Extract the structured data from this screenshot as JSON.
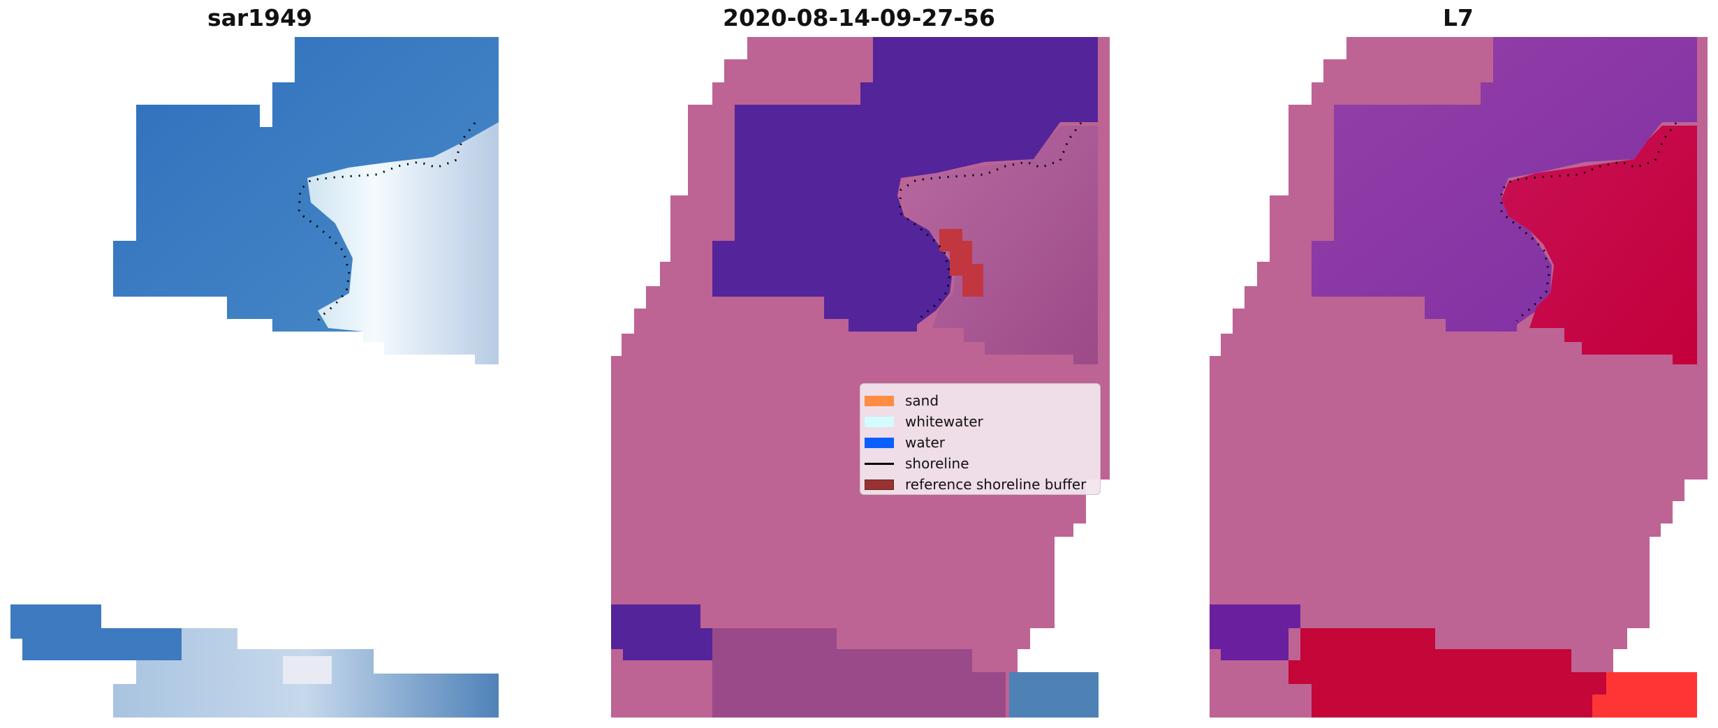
{
  "panels": [
    {
      "title": "sar1949"
    },
    {
      "title": "2020-08-14-09-27-56"
    },
    {
      "title": "L7"
    }
  ],
  "legend": {
    "items": [
      {
        "label": "sand",
        "color": "#ff8c42"
      },
      {
        "label": "whitewater",
        "color": "#d4fcff"
      },
      {
        "label": "water",
        "color": "#0a5fff"
      },
      {
        "label": "shoreline",
        "color": "#000000"
      },
      {
        "label": "reference shoreline buffer",
        "color": "#993333"
      }
    ]
  },
  "colors": {
    "background_class": "#bd6494",
    "water_rgb": "#3a7cc4",
    "whitewater_rgb": "#dbe8f2",
    "water_class": "#54249a",
    "ndwi_water": "#8a3aa6",
    "ndwi_land": "#c8063c",
    "ndwi_bright": "#ff3030"
  }
}
